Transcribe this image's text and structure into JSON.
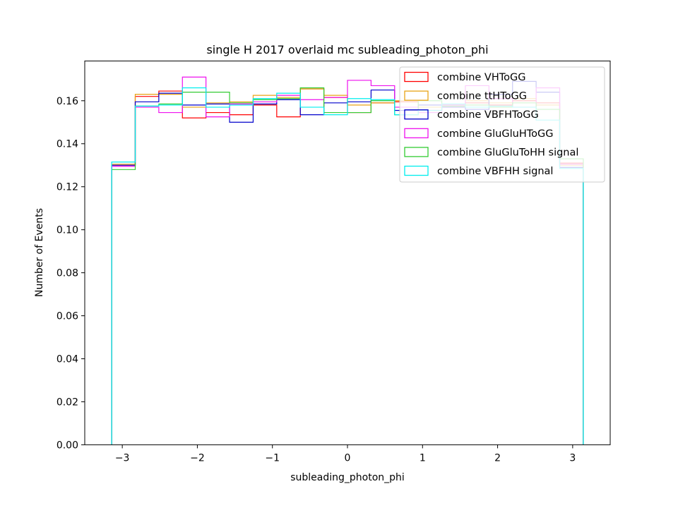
{
  "chart_data": {
    "type": "histogram-step",
    "title": "single H 2017 overlaid mc subleading_photon_phi",
    "xlabel": "subleading_photon_phi",
    "ylabel": "Number of Events",
    "xlim": [
      -3.5,
      3.5
    ],
    "ylim": [
      0,
      0.1785
    ],
    "xticks": [
      -3,
      -2,
      -1,
      0,
      1,
      2,
      3
    ],
    "xtick_labels": [
      "−3",
      "−2",
      "−1",
      "0",
      "1",
      "2",
      "3"
    ],
    "yticks": [
      0,
      0.02,
      0.04,
      0.06,
      0.08,
      0.1,
      0.12,
      0.14,
      0.16
    ],
    "ytick_labels": [
      "0.00",
      "0.02",
      "0.04",
      "0.06",
      "0.08",
      "0.10",
      "0.12",
      "0.14",
      "0.16"
    ],
    "bin_edges": [
      -3.1416,
      -2.8274,
      -2.5133,
      -2.1991,
      -1.885,
      -1.5708,
      -1.2566,
      -0.9425,
      -0.6283,
      -0.3142,
      0.0,
      0.3142,
      0.6283,
      0.9425,
      1.2566,
      1.5708,
      1.885,
      2.1991,
      2.5133,
      2.8274,
      3.1416
    ],
    "legend_position": "top-right",
    "series": [
      {
        "name": "combine VHToGG",
        "color": "#ff0000",
        "values": [
          0.13,
          0.162,
          0.1645,
          0.152,
          0.1545,
          0.1535,
          0.158,
          0.1525,
          0.1655,
          0.1615,
          0.1545,
          0.159,
          0.1595,
          0.1555,
          0.157,
          0.159,
          0.158,
          0.16,
          0.159,
          0.131
        ]
      },
      {
        "name": "combine ttHToGG",
        "color": "#e8a317",
        "values": [
          0.1305,
          0.163,
          0.163,
          0.157,
          0.159,
          0.1595,
          0.1625,
          0.1615,
          0.1655,
          0.1625,
          0.158,
          0.159,
          0.16,
          0.157,
          0.158,
          0.16,
          0.159,
          0.161,
          0.158,
          0.13
        ]
      },
      {
        "name": "combine VBFHToGG",
        "color": "#0000cc",
        "values": [
          0.13,
          0.1595,
          0.1635,
          0.158,
          0.1585,
          0.15,
          0.1585,
          0.1605,
          0.1535,
          0.159,
          0.1595,
          0.165,
          0.1555,
          0.158,
          0.157,
          0.156,
          0.163,
          0.169,
          0.164,
          0.129
        ]
      },
      {
        "name": "combine GluGluHToGG",
        "color": "#ee11ee",
        "values": [
          0.1295,
          0.157,
          0.1545,
          0.171,
          0.1525,
          0.1585,
          0.1595,
          0.1625,
          0.1605,
          0.1615,
          0.1695,
          0.167,
          0.157,
          0.1545,
          0.158,
          0.167,
          0.161,
          0.157,
          0.166,
          0.1305
        ]
      },
      {
        "name": "combine GluGluToHH signal",
        "color": "#33cc33",
        "values": [
          0.128,
          0.1575,
          0.1585,
          0.164,
          0.164,
          0.159,
          0.1605,
          0.161,
          0.166,
          0.1545,
          0.1545,
          0.16,
          0.1535,
          0.16,
          0.1575,
          0.158,
          0.157,
          0.159,
          0.156,
          0.133
        ]
      },
      {
        "name": "combine VBFHH signal",
        "color": "#00eeee",
        "values": [
          0.1315,
          0.1575,
          0.158,
          0.166,
          0.157,
          0.158,
          0.161,
          0.1635,
          0.157,
          0.1535,
          0.161,
          0.1605,
          0.1535,
          0.1555,
          0.1585,
          0.157,
          0.1575,
          0.157,
          0.151,
          0.1285
        ]
      }
    ]
  }
}
